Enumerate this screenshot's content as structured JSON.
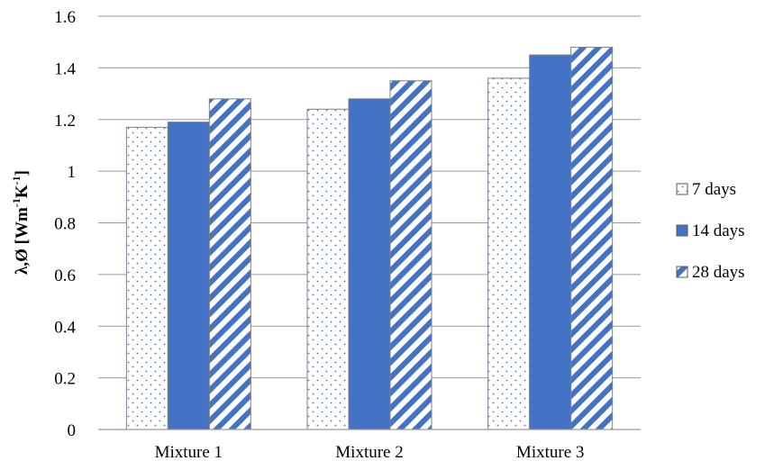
{
  "chart_data": {
    "type": "bar",
    "categories": [
      "Mixture 1",
      "Mixture 2",
      "Mixture 3"
    ],
    "series": [
      {
        "name": "7 days",
        "values": [
          1.17,
          1.24,
          1.36
        ],
        "pattern": "dots",
        "color": "#4472C4"
      },
      {
        "name": "14 days",
        "values": [
          1.19,
          1.28,
          1.45
        ],
        "pattern": "solid",
        "color": "#4472C4"
      },
      {
        "name": "28 days",
        "values": [
          1.28,
          1.35,
          1.48
        ],
        "pattern": "diagonal",
        "color": "#4472C4"
      }
    ],
    "ylabel_parts": {
      "base": "λ,Ø [Wm",
      "sup1": "-1",
      "mid": "K",
      "sup2": "-1",
      "end": "]"
    },
    "ylim": [
      0,
      1.6
    ],
    "yticks": [
      "0",
      "0.2",
      "0.4",
      "0.6",
      "0.8",
      "1",
      "1.2",
      "1.4",
      "1.6"
    ],
    "grid": true,
    "legend_position": "right",
    "gridline_color": "#9a9a9a",
    "bar_outline_color": "#7f7f7f"
  }
}
